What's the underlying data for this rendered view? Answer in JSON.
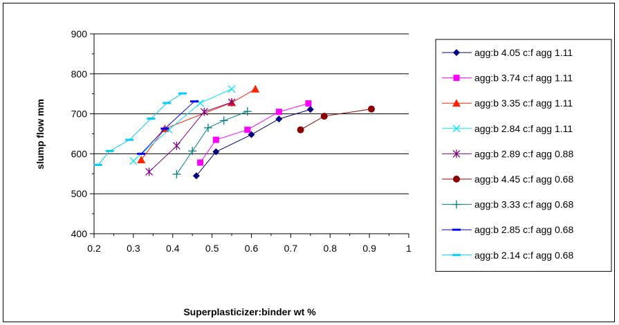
{
  "chart_data": {
    "type": "line",
    "title": "",
    "xlabel": "Superplasticizer:binder wt %",
    "ylabel": "slump flow  mm",
    "xlim": [
      0.2,
      1.0
    ],
    "ylim": [
      400,
      900
    ],
    "xticks": [
      "0.2",
      "0.3",
      "0.4",
      "0.5",
      "0.6",
      "0.7",
      "0.8",
      "0.9",
      "1"
    ],
    "yticks": [
      "400",
      "500",
      "600",
      "700",
      "800",
      "900"
    ],
    "grid": "horizontal major",
    "legend_position": "right",
    "series": [
      {
        "name": "agg:b 4.05 c:f agg 1.11",
        "color": "#000080",
        "marker": "diamond",
        "x": [
          0.46,
          0.51,
          0.6,
          0.67,
          0.75
        ],
        "y": [
          545,
          605,
          648,
          687,
          711
        ]
      },
      {
        "name": "agg:b 3.74 c:f agg 1.11",
        "color": "#ff00ff",
        "marker": "square",
        "x": [
          0.47,
          0.51,
          0.59,
          0.67,
          0.745
        ],
        "y": [
          578,
          635,
          660,
          705,
          726
        ]
      },
      {
        "name": "agg:b 3.35 c:f agg 1.11",
        "color": "#ff2200",
        "marker": "triangle",
        "x": [
          0.32,
          0.38,
          0.55,
          0.61
        ],
        "y": [
          585,
          663,
          728,
          762
        ]
      },
      {
        "name": "agg:b 2.84 c:f agg 1.11",
        "color": "#00e5ff",
        "marker": "x",
        "x": [
          0.3,
          0.39,
          0.47,
          0.55
        ],
        "y": [
          582,
          660,
          727,
          762
        ]
      },
      {
        "name": "agg:b 2.89 c:f  agg 0.88",
        "color": "#800080",
        "marker": "star",
        "x": [
          0.34,
          0.41,
          0.48,
          0.55
        ],
        "y": [
          555,
          620,
          705,
          729
        ]
      },
      {
        "name": "agg:b 4.45 c:f agg 0.68",
        "color": "#8b0000",
        "marker": "circle",
        "x": [
          0.725,
          0.785,
          0.905
        ],
        "y": [
          660,
          694,
          712
        ]
      },
      {
        "name": "agg:b 3.33 c:f agg 0.68",
        "color": "#008080",
        "marker": "plus",
        "x": [
          0.41,
          0.45,
          0.49,
          0.53,
          0.59
        ],
        "y": [
          549,
          607,
          665,
          683,
          706
        ]
      },
      {
        "name": "agg:b 2.85 c:f agg 0.68",
        "color": "#0000ff",
        "marker": "dash",
        "x": [
          0.32,
          0.38,
          0.455
        ],
        "y": [
          600,
          663,
          731
        ]
      },
      {
        "name": "agg:b 2.14 c:f agg 0.68",
        "color": "#00ccff",
        "marker": "dash",
        "x": [
          0.21,
          0.24,
          0.29,
          0.345,
          0.385,
          0.425
        ],
        "y": [
          572,
          607,
          635,
          688,
          727,
          751
        ]
      }
    ]
  }
}
